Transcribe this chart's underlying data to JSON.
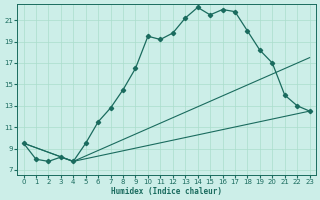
{
  "xlabel": "Humidex (Indice chaleur)",
  "xlim": [
    -0.5,
    23.5
  ],
  "ylim": [
    6.5,
    22.5
  ],
  "xticks": [
    0,
    1,
    2,
    3,
    4,
    5,
    6,
    7,
    8,
    9,
    10,
    11,
    12,
    13,
    14,
    15,
    16,
    17,
    18,
    19,
    20,
    21,
    22,
    23
  ],
  "yticks": [
    7,
    9,
    11,
    13,
    15,
    17,
    19,
    21
  ],
  "bg_color": "#cceee8",
  "grid_color": "#aaddcc",
  "line_color": "#1a6b5e",
  "line1_x": [
    0,
    1,
    2,
    3,
    4,
    5,
    6,
    7,
    8,
    9,
    10,
    11,
    12,
    13,
    14,
    15,
    16,
    17,
    18,
    19,
    20,
    21,
    22,
    23
  ],
  "line1_y": [
    9.5,
    8.0,
    7.8,
    8.2,
    7.8,
    9.5,
    11.5,
    12.8,
    14.5,
    16.5,
    19.5,
    19.2,
    19.8,
    21.2,
    22.2,
    21.5,
    22.0,
    21.8,
    20.0,
    18.2,
    17.0,
    14.0,
    13.0,
    12.5
  ],
  "line2_x": [
    0,
    4,
    23
  ],
  "line2_y": [
    9.5,
    7.8,
    17.5
  ],
  "line3_x": [
    0,
    4,
    23
  ],
  "line3_y": [
    9.5,
    7.8,
    12.5
  ]
}
